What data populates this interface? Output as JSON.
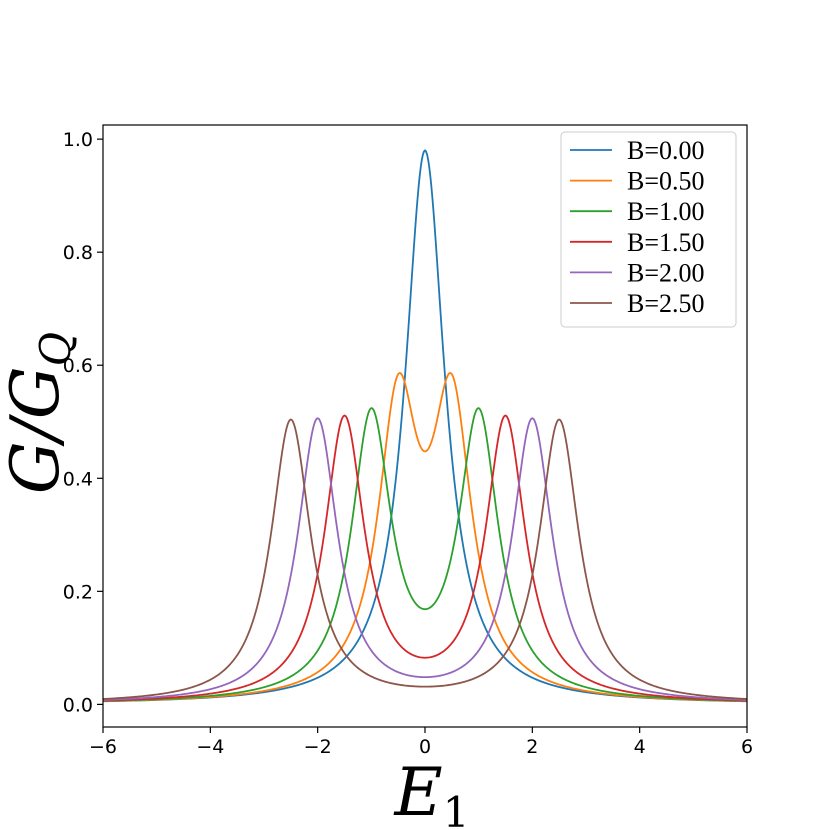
{
  "chart_data": {
    "type": "line",
    "xlabel": "E",
    "xlabel_sub": "1",
    "ylabel": "G/G",
    "ylabel_sub": "Q",
    "xlim": [
      -6,
      6
    ],
    "ylim": [
      -0.04,
      1.025
    ],
    "xticks": [
      -6,
      -4,
      -2,
      0,
      2,
      4,
      6
    ],
    "xtick_labels": [
      "−6",
      "−4",
      "−2",
      "0",
      "2",
      "4",
      "6"
    ],
    "yticks": [
      0.0,
      0.2,
      0.4,
      0.6,
      0.8,
      1.0
    ],
    "ytick_labels": [
      "0.0",
      "0.2",
      "0.4",
      "0.6",
      "0.8",
      "1.0"
    ],
    "grid": false,
    "legend_position": "top-right",
    "model_width": 0.45,
    "series": [
      {
        "name": "B=0.00",
        "B": 0.0,
        "color": "#1f77b4"
      },
      {
        "name": "B=0.50",
        "B": 0.5,
        "color": "#ff7f0e"
      },
      {
        "name": "B=1.00",
        "B": 1.0,
        "color": "#2ca02c"
      },
      {
        "name": "B=1.50",
        "B": 1.5,
        "color": "#d62728"
      },
      {
        "name": "B=2.00",
        "B": 2.0,
        "color": "#9467bd"
      },
      {
        "name": "B=2.50",
        "B": 2.5,
        "color": "#8c564b"
      }
    ]
  }
}
